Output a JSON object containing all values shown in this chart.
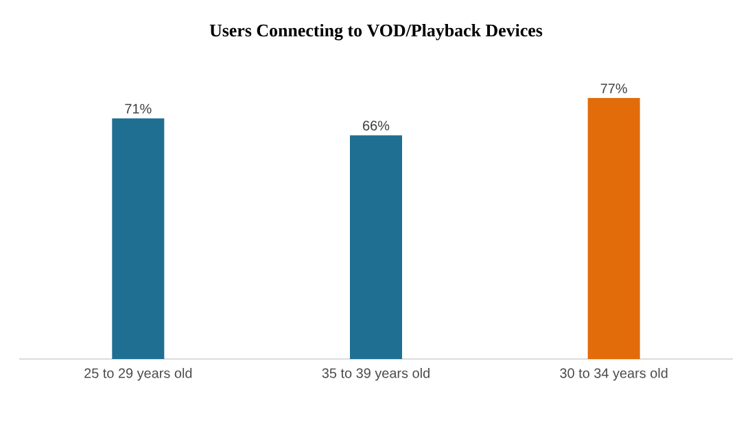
{
  "chart_data": {
    "type": "bar",
    "title": "Users Connecting to VOD/Playback Devices",
    "categories": [
      "25 to 29 years old",
      "35 to 39 years old",
      "30 to 34 years old"
    ],
    "values": [
      71,
      66,
      77
    ],
    "colors": [
      "#1f6f92",
      "#1f6f92",
      "#e36c0a"
    ],
    "value_labels": [
      "71%",
      "66%",
      "77%"
    ]
  }
}
